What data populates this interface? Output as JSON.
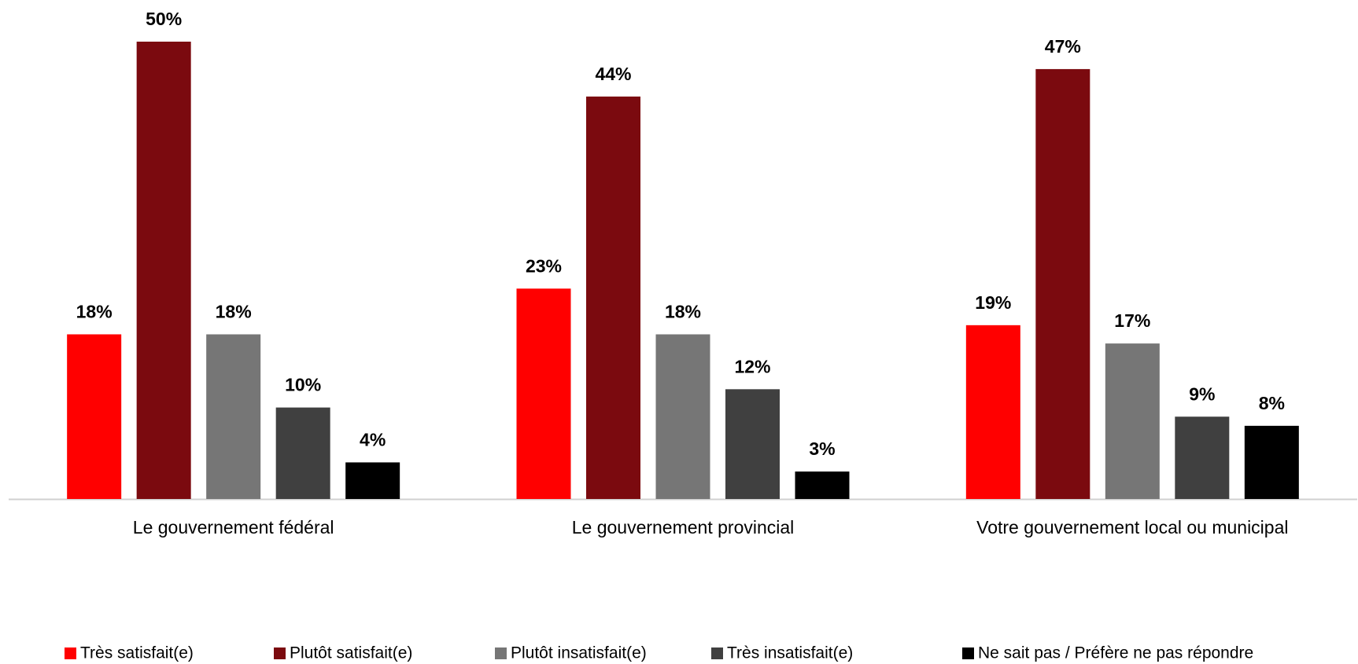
{
  "chart_data": {
    "type": "bar",
    "categories": [
      "Le gouvernement fédéral",
      "Le gouvernement provincial",
      "Votre gouvernement local ou municipal"
    ],
    "series": [
      {
        "name": "Très satisfait(e)",
        "color": "#ff0000",
        "values": [
          18,
          23,
          19
        ],
        "value_labels": [
          "18%",
          "23%",
          "19%"
        ]
      },
      {
        "name": "Plutôt satisfait(e)",
        "color": "#7b0a0f",
        "values": [
          50,
          44,
          47
        ],
        "value_labels": [
          "50%",
          "44%",
          "47%"
        ]
      },
      {
        "name": "Plutôt insatisfait(e)",
        "color": "#767676",
        "values": [
          18,
          18,
          17
        ],
        "value_labels": [
          "18%",
          "18%",
          "17%"
        ]
      },
      {
        "name": "Très insatisfait(e)",
        "color": "#404040",
        "values": [
          10,
          12,
          9
        ],
        "value_labels": [
          "10%",
          "12%",
          "9%"
        ]
      },
      {
        "name": "Ne sait pas / Préfère ne pas répondre",
        "color": "#000000",
        "values": [
          4,
          3,
          8
        ],
        "value_labels": [
          "4%",
          "3%",
          "8%"
        ]
      }
    ],
    "legend": "bottom"
  }
}
